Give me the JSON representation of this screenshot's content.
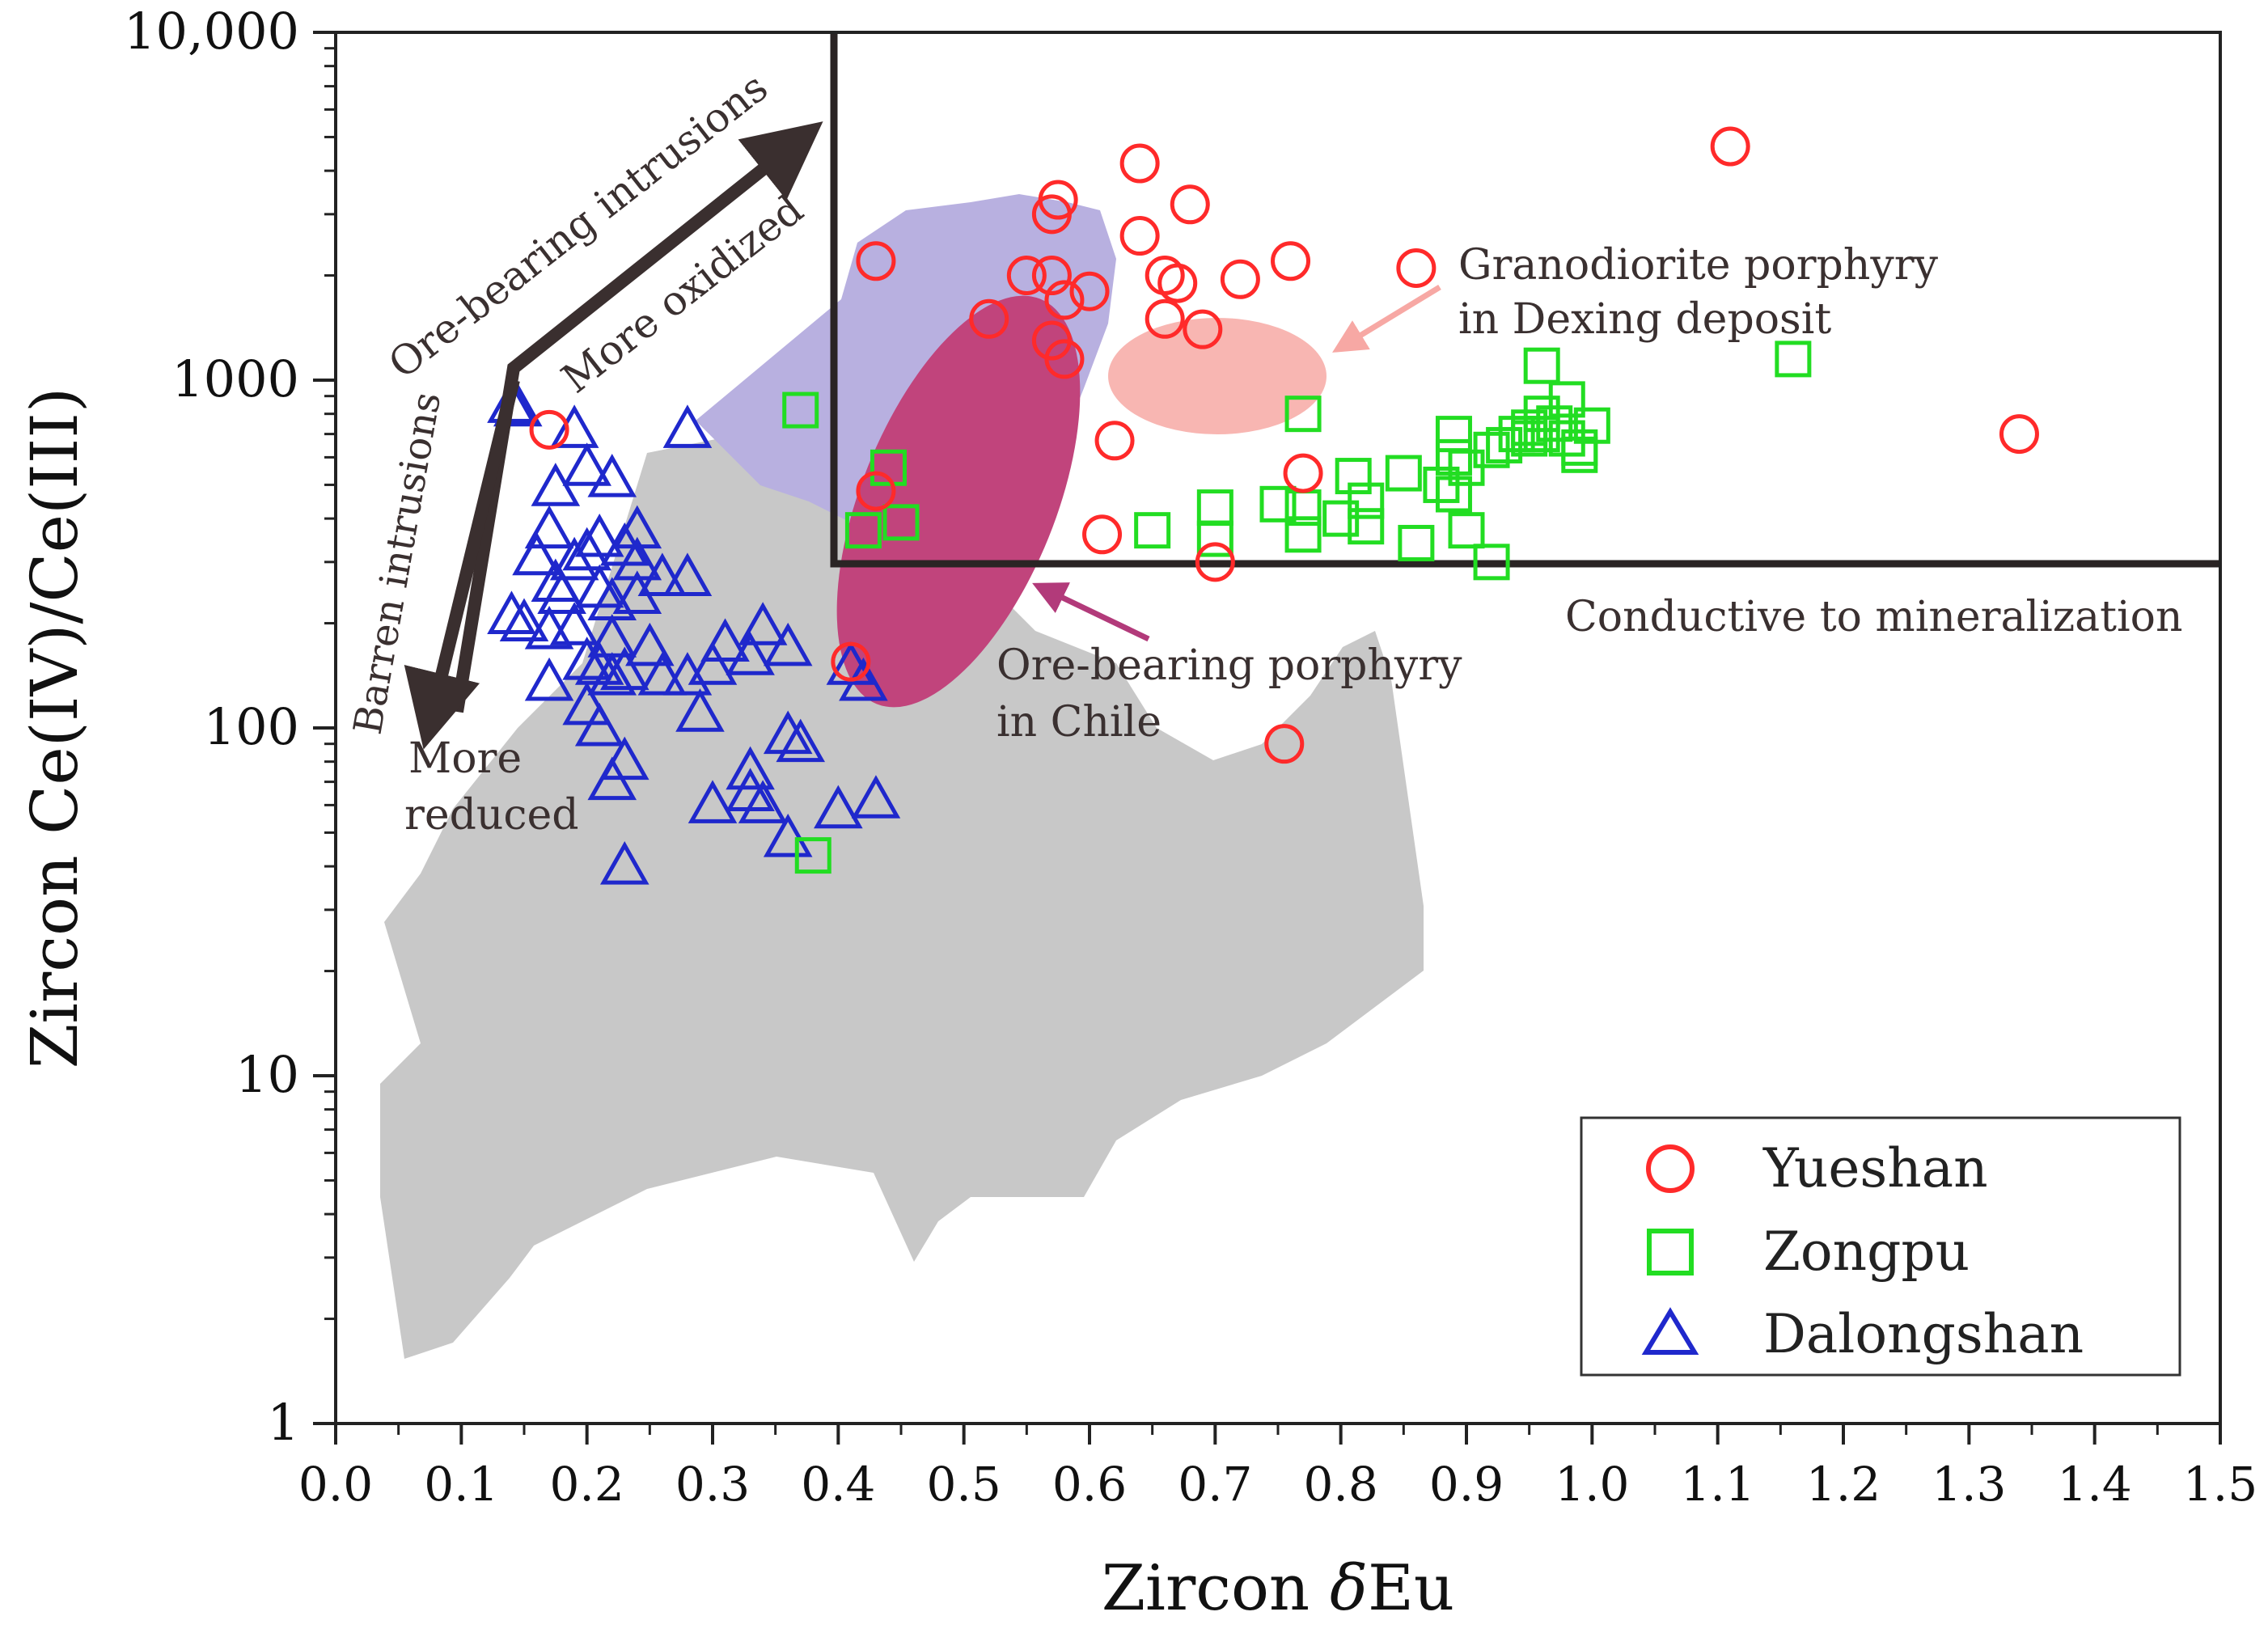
{
  "chart_data": {
    "type": "scatter",
    "title": "",
    "xlabel_prefix": "Zircon ",
    "xlabel_symbol": "δ",
    "xlabel_suffix": "Eu",
    "ylabel": "Zircon Ce(IV)/Ce(III)",
    "xlim": [
      0.0,
      1.5
    ],
    "ylim": [
      1,
      10000
    ],
    "yscale": "log",
    "x_ticks": [
      0.0,
      0.1,
      0.2,
      0.3,
      0.4,
      0.5,
      0.6,
      0.7,
      0.8,
      0.9,
      1.0,
      1.1,
      1.2,
      1.3,
      1.4,
      1.5
    ],
    "x_tick_labels": [
      "0.0",
      "0.1",
      "0.2",
      "0.3",
      "0.4",
      "0.5",
      "0.6",
      "0.7",
      "0.8",
      "0.9",
      "1.0",
      "1.1",
      "1.2",
      "1.3",
      "1.4",
      "1.5"
    ],
    "y_ticks": [
      1,
      10,
      100,
      1000,
      10000
    ],
    "y_tick_labels": [
      "1",
      "10",
      "100",
      "1000",
      "10,000"
    ],
    "grid": false,
    "legend_position": "bottom-right",
    "series": [
      {
        "name": "Yueshan",
        "marker": "circle",
        "color": "#ff2a2a",
        "points": [
          [
            0.17,
            720
          ],
          [
            0.43,
            2200
          ],
          [
            0.43,
            480
          ],
          [
            0.41,
            155
          ],
          [
            0.52,
            1500
          ],
          [
            0.55,
            2000
          ],
          [
            0.57,
            2000
          ],
          [
            0.58,
            1700
          ],
          [
            0.57,
            1300
          ],
          [
            0.58,
            1150
          ],
          [
            0.57,
            3000
          ],
          [
            0.575,
            3300
          ],
          [
            0.6,
            1800
          ],
          [
            0.64,
            4200
          ],
          [
            0.64,
            2600
          ],
          [
            0.66,
            2000
          ],
          [
            0.67,
            1900
          ],
          [
            0.68,
            3200
          ],
          [
            0.66,
            1500
          ],
          [
            0.69,
            1400
          ],
          [
            0.72,
            1950
          ],
          [
            0.76,
            2200
          ],
          [
            0.62,
            670
          ],
          [
            0.61,
            360
          ],
          [
            0.7,
            300
          ],
          [
            0.77,
            540
          ],
          [
            0.755,
            90
          ],
          [
            0.86,
            2100
          ],
          [
            1.11,
            4700
          ],
          [
            1.34,
            700
          ]
        ]
      },
      {
        "name": "Zongpu",
        "marker": "square",
        "color": "#22dd22",
        "points": [
          [
            0.37,
            820
          ],
          [
            0.44,
            560
          ],
          [
            0.45,
            390
          ],
          [
            0.42,
            370
          ],
          [
            0.38,
            43
          ],
          [
            0.65,
            370
          ],
          [
            0.7,
            430
          ],
          [
            0.7,
            350
          ],
          [
            0.75,
            440
          ],
          [
            0.77,
            800
          ],
          [
            0.77,
            430
          ],
          [
            0.77,
            360
          ],
          [
            0.8,
            400
          ],
          [
            0.81,
            530
          ],
          [
            0.82,
            450
          ],
          [
            0.82,
            380
          ],
          [
            0.85,
            540
          ],
          [
            0.86,
            340
          ],
          [
            0.88,
            500
          ],
          [
            0.89,
            470
          ],
          [
            0.89,
            700
          ],
          [
            0.89,
            600
          ],
          [
            0.9,
            560
          ],
          [
            0.9,
            370
          ],
          [
            0.92,
            630
          ],
          [
            0.92,
            300
          ],
          [
            0.93,
            650
          ],
          [
            0.94,
            700
          ],
          [
            0.95,
            730
          ],
          [
            0.95,
            680
          ],
          [
            0.96,
            1100
          ],
          [
            0.96,
            800
          ],
          [
            0.96,
            700
          ],
          [
            0.97,
            750
          ],
          [
            0.98,
            880
          ],
          [
            0.98,
            680
          ],
          [
            0.99,
            640
          ],
          [
            0.99,
            610
          ],
          [
            1.0,
            740
          ],
          [
            1.16,
            1150
          ]
        ]
      },
      {
        "name": "Dalongshan",
        "marker": "triangle",
        "color": "#1f28cc",
        "points": [
          [
            0.14,
            850
          ],
          [
            0.145,
            830
          ],
          [
            0.19,
            720
          ],
          [
            0.28,
            720
          ],
          [
            0.175,
            490
          ],
          [
            0.2,
            560
          ],
          [
            0.22,
            520
          ],
          [
            0.17,
            370
          ],
          [
            0.16,
            310
          ],
          [
            0.19,
            300
          ],
          [
            0.2,
            320
          ],
          [
            0.21,
            350
          ],
          [
            0.23,
            330
          ],
          [
            0.24,
            370
          ],
          [
            0.24,
            300
          ],
          [
            0.26,
            270
          ],
          [
            0.28,
            270
          ],
          [
            0.175,
            260
          ],
          [
            0.18,
            240
          ],
          [
            0.21,
            250
          ],
          [
            0.22,
            230
          ],
          [
            0.24,
            240
          ],
          [
            0.14,
            210
          ],
          [
            0.15,
            200
          ],
          [
            0.17,
            190
          ],
          [
            0.19,
            195
          ],
          [
            0.22,
            180
          ],
          [
            0.25,
            170
          ],
          [
            0.2,
            155
          ],
          [
            0.21,
            150
          ],
          [
            0.22,
            140
          ],
          [
            0.23,
            145
          ],
          [
            0.26,
            140
          ],
          [
            0.28,
            140
          ],
          [
            0.3,
            150
          ],
          [
            0.31,
            175
          ],
          [
            0.33,
            160
          ],
          [
            0.34,
            195
          ],
          [
            0.36,
            170
          ],
          [
            0.17,
            135
          ],
          [
            0.2,
            115
          ],
          [
            0.21,
            100
          ],
          [
            0.29,
            110
          ],
          [
            0.41,
            150
          ],
          [
            0.42,
            135
          ],
          [
            0.36,
            95
          ],
          [
            0.37,
            90
          ],
          [
            0.23,
            80
          ],
          [
            0.22,
            70
          ],
          [
            0.33,
            75
          ],
          [
            0.3,
            60
          ],
          [
            0.33,
            65
          ],
          [
            0.34,
            60
          ],
          [
            0.4,
            58
          ],
          [
            0.43,
            62
          ],
          [
            0.36,
            48
          ],
          [
            0.23,
            40
          ]
        ]
      }
    ],
    "annotations": [
      {
        "id": "ore_bearing",
        "text": "Ore-bearing intrusions"
      },
      {
        "id": "more_oxidized",
        "text": "More oxidized"
      },
      {
        "id": "barren",
        "text": "Barren intrusions"
      },
      {
        "id": "more_reduced_1",
        "text": "More"
      },
      {
        "id": "more_reduced_2",
        "text": "reduced"
      },
      {
        "id": "dexing_1",
        "text": "Granodiorite porphyry"
      },
      {
        "id": "dexing_2",
        "text": "in Dexing deposit"
      },
      {
        "id": "chile_1",
        "text": "Ore-bearing porphyry"
      },
      {
        "id": "chile_2",
        "text": "in Chile"
      },
      {
        "id": "conducive",
        "text": "Conductive to mineralization"
      }
    ],
    "regions": [
      {
        "name": "barren-intrusions-field",
        "color": "#c8c8c8"
      },
      {
        "name": "ore-bearing-intrusions-field",
        "color": "#b8b0e0"
      },
      {
        "name": "chile-porphyry-field",
        "color": "#c1447c"
      },
      {
        "name": "dexing-porphyry-field",
        "color": "#f8b6b2"
      }
    ],
    "mineralization_box": {
      "x_min": 0.4,
      "y_min": 300,
      "y_max": 10000
    }
  }
}
